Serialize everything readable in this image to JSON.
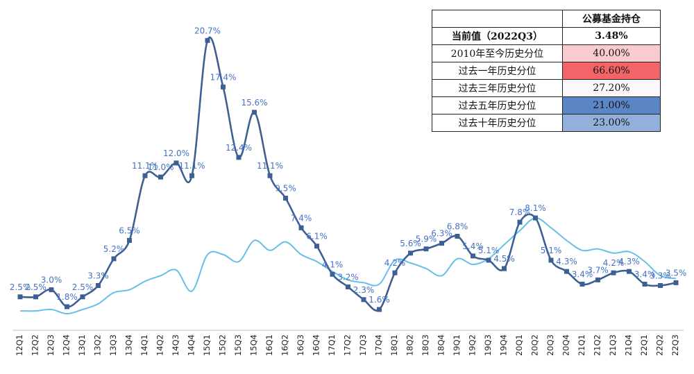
{
  "chart_data": {
    "type": "line",
    "categories": [
      "12Q1",
      "12Q2",
      "12Q3",
      "12Q4",
      "13Q1",
      "13Q2",
      "13Q3",
      "13Q4",
      "14Q1",
      "14Q2",
      "14Q3",
      "14Q4",
      "15Q1",
      "15Q2",
      "15Q3",
      "15Q4",
      "16Q1",
      "16Q2",
      "16Q3",
      "16Q4",
      "17Q1",
      "17Q2",
      "17Q3",
      "17Q4",
      "18Q1",
      "18Q2",
      "18Q3",
      "18Q4",
      "19Q1",
      "19Q2",
      "19Q3",
      "19Q4",
      "20Q1",
      "20Q2",
      "20Q3",
      "20Q4",
      "21Q1",
      "21Q2",
      "21Q3",
      "21Q4",
      "22Q1",
      "22Q2",
      "22Q3"
    ],
    "series": [
      {
        "values": [
          2.5,
          2.5,
          3.0,
          1.8,
          2.5,
          3.3,
          5.2,
          6.5,
          11.1,
          11.0,
          12.0,
          11.1,
          20.7,
          17.4,
          12.4,
          15.6,
          11.1,
          9.5,
          7.4,
          6.1,
          4.1,
          3.2,
          2.3,
          1.6,
          4.2,
          5.6,
          5.9,
          6.3,
          6.8,
          5.4,
          5.1,
          4.5,
          7.8,
          8.1,
          5.1,
          4.3,
          3.4,
          3.7,
          4.2,
          4.3,
          3.4,
          3.3,
          3.5
        ],
        "labels": [
          "2.5%",
          "2.5%",
          "3.0%",
          "1.8%",
          "2.5%",
          "3.3%",
          "5.2%",
          "6.5%",
          "11.1%",
          "11.0%",
          "12.0%",
          "11.1%",
          "20.7%",
          "17.4%",
          "12.4%",
          "15.6%",
          "11.1%",
          "9.5%",
          "7.4%",
          "6.1%",
          "4.1%",
          "3.2%",
          "2.3%",
          "1.6%",
          "4.2%",
          "5.6%",
          "5.9%",
          "6.3%",
          "6.8%",
          "5.4%",
          "5.1%",
          "4.5%",
          "7.8%",
          "8.1%",
          "5.1%",
          "4.3%",
          "3.4%",
          "3.7%",
          "4.2%",
          "4.3%",
          "3.4%",
          "3.3%",
          "3.5%"
        ],
        "color": "#3d5f94",
        "marker": "square"
      },
      {
        "values": [
          1.5,
          1.5,
          1.6,
          1.3,
          1.6,
          2.0,
          2.8,
          3.0,
          3.6,
          4.0,
          4.4,
          2.9,
          5.5,
          5.5,
          5.0,
          6.5,
          5.8,
          6.4,
          5.5,
          5.0,
          4.3,
          3.7,
          3.5,
          3.4,
          5.1,
          4.9,
          4.5,
          4.0,
          5.2,
          4.8,
          5.2,
          6.2,
          7.2,
          8.1,
          7.4,
          6.5,
          5.8,
          5.9,
          5.6,
          5.7,
          5.0,
          4.0,
          3.8
        ],
        "color": "#66bfe8",
        "smooth": true
      }
    ],
    "ylim": [
      0,
      22
    ],
    "grid": false,
    "legend": false
  },
  "stats_table": {
    "header": {
      "label": "",
      "value": "公募基金持仓"
    },
    "rows": [
      {
        "label": "当前值（2022Q3）",
        "value": "3.48%",
        "bg": "#ffffff",
        "kind": "current"
      },
      {
        "label": "2010年至今历史分位",
        "value": "40.00%",
        "bg": "#f9cbd0",
        "kind": "normal"
      },
      {
        "label": "过去一年历史分位",
        "value": "66.60%",
        "bg": "#f26467",
        "kind": "normal"
      },
      {
        "label": "过去三年历史分位",
        "value": "27.20%",
        "bg": "#fcf7fa",
        "kind": "normal"
      },
      {
        "label": "过去五年历史分位",
        "value": "21.00%",
        "bg": "#5a86c5",
        "kind": "normal"
      },
      {
        "label": "过去十年历史分位",
        "value": "23.00%",
        "bg": "#92b0da",
        "kind": "normal"
      }
    ]
  }
}
